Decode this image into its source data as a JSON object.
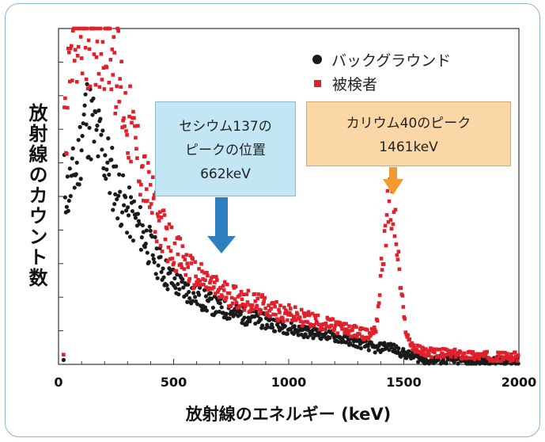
{
  "chart_data": {
    "type": "scatter",
    "xlim": [
      0,
      2000
    ],
    "ylim": [
      0,
      220
    ],
    "xlabel": "放射線のエネルギー (keV)",
    "ylabel": "放射線のカウント数",
    "x_ticks": [
      "0",
      "500",
      "1000",
      "1500",
      "2000"
    ],
    "grid": false,
    "legend": {
      "position": "top-right",
      "entries": [
        "バックグラウンド",
        "被検者"
      ]
    },
    "series": [
      {
        "name": "バックグラウンド",
        "color": "#1a1a1a",
        "marker": "circle",
        "points": [
          [
            25,
            120
          ],
          [
            40,
            112
          ],
          [
            55,
            118
          ],
          [
            70,
            125
          ],
          [
            85,
            130
          ],
          [
            100,
            150
          ],
          [
            110,
            158
          ],
          [
            120,
            165
          ],
          [
            135,
            160
          ],
          [
            150,
            155
          ],
          [
            165,
            148
          ],
          [
            180,
            145
          ],
          [
            200,
            138
          ],
          [
            220,
            128
          ],
          [
            240,
            120
          ],
          [
            260,
            112
          ],
          [
            280,
            106
          ],
          [
            300,
            100
          ],
          [
            320,
            96
          ],
          [
            340,
            93
          ],
          [
            360,
            88
          ],
          [
            380,
            82
          ],
          [
            400,
            76
          ],
          [
            420,
            71
          ],
          [
            440,
            66
          ],
          [
            460,
            61
          ],
          [
            480,
            57
          ],
          [
            500,
            54
          ],
          [
            520,
            52
          ],
          [
            540,
            50
          ],
          [
            560,
            48
          ],
          [
            580,
            47
          ],
          [
            600,
            45
          ],
          [
            620,
            43
          ],
          [
            640,
            41
          ],
          [
            660,
            40
          ],
          [
            680,
            38
          ],
          [
            700,
            37
          ],
          [
            720,
            36
          ],
          [
            740,
            35
          ],
          [
            760,
            34
          ],
          [
            780,
            33
          ],
          [
            800,
            32
          ],
          [
            850,
            30
          ],
          [
            900,
            28
          ],
          [
            950,
            26
          ],
          [
            1000,
            24
          ],
          [
            1050,
            22
          ],
          [
            1100,
            21
          ],
          [
            1150,
            20
          ],
          [
            1200,
            18
          ],
          [
            1250,
            16
          ],
          [
            1300,
            14
          ],
          [
            1350,
            12
          ],
          [
            1380,
            10
          ],
          [
            1400,
            11
          ],
          [
            1420,
            12
          ],
          [
            1440,
            12
          ],
          [
            1460,
            10
          ],
          [
            1500,
            7
          ],
          [
            1550,
            5
          ],
          [
            1600,
            3
          ],
          [
            1700,
            3
          ],
          [
            1800,
            2
          ],
          [
            1900,
            2
          ],
          [
            2000,
            2
          ]
        ]
      },
      {
        "name": "被検者",
        "color": "#e0202a",
        "marker": "square",
        "points": [
          [
            25,
            150
          ],
          [
            40,
            175
          ],
          [
            55,
            200
          ],
          [
            70,
            210
          ],
          [
            85,
            218
          ],
          [
            100,
            218
          ],
          [
            120,
            218
          ],
          [
            140,
            218
          ],
          [
            160,
            218
          ],
          [
            180,
            218
          ],
          [
            200,
            218
          ],
          [
            220,
            215
          ],
          [
            240,
            205
          ],
          [
            260,
            190
          ],
          [
            280,
            172
          ],
          [
            300,
            160
          ],
          [
            320,
            150
          ],
          [
            340,
            140
          ],
          [
            360,
            128
          ],
          [
            380,
            118
          ],
          [
            400,
            108
          ],
          [
            420,
            100
          ],
          [
            440,
            92
          ],
          [
            460,
            86
          ],
          [
            480,
            80
          ],
          [
            500,
            76
          ],
          [
            520,
            72
          ],
          [
            540,
            68
          ],
          [
            560,
            64
          ],
          [
            580,
            60
          ],
          [
            600,
            58
          ],
          [
            620,
            56
          ],
          [
            640,
            54
          ],
          [
            660,
            52
          ],
          [
            680,
            50
          ],
          [
            700,
            48
          ],
          [
            720,
            47
          ],
          [
            740,
            46
          ],
          [
            760,
            45
          ],
          [
            780,
            44
          ],
          [
            800,
            43
          ],
          [
            850,
            40
          ],
          [
            900,
            38
          ],
          [
            950,
            35
          ],
          [
            1000,
            33
          ],
          [
            1050,
            31
          ],
          [
            1100,
            29
          ],
          [
            1150,
            27
          ],
          [
            1200,
            25
          ],
          [
            1250,
            23
          ],
          [
            1300,
            21
          ],
          [
            1350,
            19
          ],
          [
            1380,
            25
          ],
          [
            1400,
            55
          ],
          [
            1420,
            90
          ],
          [
            1440,
            105
          ],
          [
            1460,
            95
          ],
          [
            1480,
            60
          ],
          [
            1500,
            30
          ],
          [
            1520,
            16
          ],
          [
            1550,
            10
          ],
          [
            1600,
            8
          ],
          [
            1700,
            7
          ],
          [
            1800,
            6
          ],
          [
            1900,
            5
          ],
          [
            2000,
            5
          ]
        ]
      }
    ],
    "annotations": [
      {
        "lines": [
          "セシウム137の",
          "ピークの位置",
          "662keV"
        ],
        "x": 662,
        "color": "#c3e6f5",
        "arrow_color": "#2e7fc0"
      },
      {
        "lines": [
          "カリウム40のピーク",
          "1461keV"
        ],
        "x": 1461,
        "color": "#fbd7a8",
        "arrow_color": "#f29a2e"
      }
    ]
  }
}
